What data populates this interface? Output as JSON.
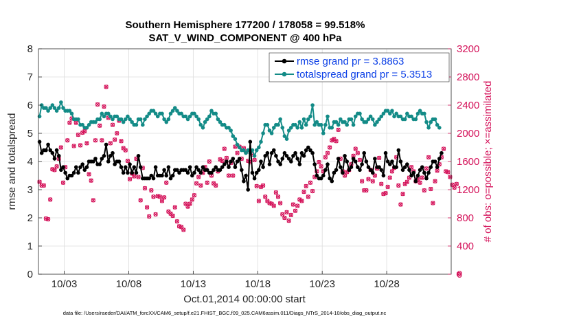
{
  "chart_data": {
    "type": "line",
    "title": "Southern Hemisphere 177200 / 178058 = 99.518%",
    "subtitle": "SAT_V_WIND_COMPONENT @ 400 hPa",
    "xlabel": "Oct.01,2014 00:00:00 start",
    "ylabel": "rmse and totalspread",
    "y2label": "# of obs: o=possible; ×=assimilated",
    "footer": "data file: /Users/raeder/DAI/ATM_forcXX/CAM6_setup/f.e21.FHIST_BGC.f09_025.CAM6assim.011/Diags_NTrS_2014-10/obs_diag_output.nc",
    "xlim": [
      1.0,
      33.0
    ],
    "ylim": [
      0,
      8
    ],
    "y2lim": [
      0,
      3200
    ],
    "x_ticks": [
      {
        "value": 3,
        "label": "10/03"
      },
      {
        "value": 8,
        "label": "10/08"
      },
      {
        "value": 13,
        "label": "10/13"
      },
      {
        "value": 18,
        "label": "10/18"
      },
      {
        "value": 23,
        "label": "10/23"
      },
      {
        "value": 28,
        "label": "10/28"
      }
    ],
    "y_ticks": [
      "0",
      "1",
      "2",
      "3",
      "4",
      "5",
      "6",
      "7",
      "8"
    ],
    "y2_ticks": [
      "0",
      "400",
      "800",
      "1200",
      "1600",
      "2000",
      "2400",
      "2800",
      "3200"
    ],
    "grid": true,
    "legend_position": "top-right",
    "colors": {
      "rmse": "#000000",
      "spread": "#138b87",
      "obs": "#d41159",
      "legend_text": "#0b3fe6"
    },
    "series": [
      {
        "name": "rmse grand pr = 3.8863",
        "axis": "left",
        "values": [
          4.7,
          4.3,
          4.4,
          4.4,
          4.6,
          4.4,
          4.3,
          4.1,
          4.4,
          4.2,
          3.7,
          3.8,
          3.6,
          3.4,
          3.5,
          3.5,
          3.6,
          3.8,
          3.6,
          3.8,
          3.9,
          3.7,
          3.8,
          4.0,
          4.0,
          4.0,
          4.1,
          3.9,
          3.9,
          4.1,
          4.2,
          4.6,
          4.0,
          4.2,
          4.3,
          3.9,
          4.0,
          4.0,
          3.8,
          3.6,
          3.8,
          3.6,
          3.9,
          3.6,
          3.8,
          3.6,
          4.2,
          3.8,
          3.4,
          3.4,
          3.4,
          3.4,
          3.5,
          3.4,
          3.8,
          3.5,
          3.5,
          3.5,
          3.7,
          3.5,
          3.8,
          3.4,
          3.5,
          3.7,
          3.7,
          3.6,
          3.7,
          3.7,
          3.7,
          3.6,
          3.8,
          3.5,
          3.6,
          3.8,
          3.7,
          3.6,
          3.8,
          3.7,
          3.7,
          3.6,
          3.6,
          3.7,
          3.8,
          3.7,
          3.7,
          3.8,
          3.9,
          4.0,
          3.8,
          4.0,
          4.1,
          3.8,
          4.0,
          4.1,
          3.7,
          3.3,
          3.5,
          3.0,
          4.7,
          3.6,
          3.4,
          3.6,
          3.7,
          4.0,
          3.8,
          4.2,
          4.3,
          3.9,
          4.3,
          4.4,
          4.2,
          4.0,
          3.9,
          4.1,
          4.3,
          4.2,
          4.1,
          4.0,
          4.2,
          4.3,
          4.1,
          3.9,
          4.3,
          4.2,
          4.4,
          4.5,
          4.4,
          4.3,
          3.9,
          3.5,
          3.4,
          3.4,
          3.5,
          3.7,
          3.9,
          3.4,
          3.3,
          3.6,
          3.7,
          4.1,
          3.8,
          3.6,
          4.2,
          4.0,
          3.7,
          3.8,
          4.1,
          4.0,
          3.8,
          3.7,
          3.9,
          4.3,
          4.0,
          3.8,
          3.7,
          3.6,
          4.1,
          3.8,
          3.8,
          3.7,
          3.5,
          4.3,
          4.0,
          3.9,
          4.0,
          3.8,
          3.8,
          4.4,
          4.0,
          3.7,
          3.8,
          3.9,
          3.7,
          3.5,
          3.6,
          3.3,
          3.5,
          3.7,
          3.8,
          3.6,
          3.4,
          3.6,
          3.8,
          4.0,
          4.0,
          3.8,
          4.1,
          4.3
        ]
      },
      {
        "name": "totalspread grand pr = 5.3513",
        "axis": "left",
        "values": [
          5.6,
          6.0,
          5.9,
          5.9,
          5.8,
          5.9,
          6.0,
          5.9,
          5.8,
          5.9,
          6.1,
          5.9,
          5.8,
          5.8,
          5.8,
          5.7,
          5.5,
          5.5,
          5.5,
          5.3,
          5.3,
          5.2,
          5.2,
          5.3,
          5.4,
          5.4,
          5.4,
          5.5,
          5.5,
          5.7,
          5.6,
          5.7,
          5.7,
          5.6,
          5.5,
          5.6,
          5.6,
          5.5,
          5.5,
          5.4,
          5.5,
          5.6,
          5.5,
          5.4,
          5.3,
          5.3,
          5.5,
          5.5,
          5.3,
          5.5,
          5.6,
          5.7,
          5.8,
          5.8,
          5.7,
          5.6,
          5.7,
          5.7,
          5.5,
          5.4,
          5.5,
          5.7,
          5.8,
          5.9,
          5.8,
          5.7,
          5.7,
          5.6,
          5.6,
          5.5,
          5.6,
          5.7,
          5.7,
          5.6,
          5.5,
          5.3,
          5.2,
          5.4,
          5.5,
          5.6,
          5.8,
          5.7,
          5.7,
          5.5,
          5.4,
          5.3,
          5.3,
          5.2,
          5.2,
          5.1,
          4.9,
          4.8,
          4.6,
          4.5,
          4.4,
          4.4,
          4.3,
          4.4,
          4.3,
          4.4,
          4.2,
          4.4,
          4.5,
          4.7,
          5.0,
          5.3,
          5.3,
          5.1,
          5.0,
          5.2,
          5.3,
          5.3,
          5.5,
          5.2,
          4.9,
          4.8,
          5.1,
          5.2,
          5.3,
          5.3,
          5.2,
          5.4,
          5.2,
          5.5,
          5.3,
          5.5,
          5.6,
          6.0,
          5.3,
          5.4,
          5.3,
          5.3,
          5.0,
          5.3,
          5.6,
          5.2,
          5.2,
          5.4,
          5.4,
          5.3,
          5.5,
          5.4,
          5.4,
          5.3,
          5.5,
          5.5,
          5.3,
          5.6,
          5.7,
          5.7,
          5.5,
          5.4,
          5.4,
          5.5,
          5.6,
          5.5,
          5.3,
          5.4,
          5.5,
          5.6,
          5.7,
          5.8,
          5.8,
          5.7,
          5.8,
          5.6,
          5.7,
          5.6,
          5.6,
          5.5,
          5.5,
          5.7,
          5.6,
          5.6,
          5.5,
          5.5,
          5.7,
          5.8,
          5.7,
          5.7,
          5.4,
          5.2,
          5.4,
          5.5,
          5.5,
          5.3,
          5.2
        ]
      },
      {
        "name": "obs possible",
        "axis": "right",
        "values": [
          1310,
          1260,
          1260,
          790,
          780,
          1060,
          1490,
          1480,
          1530,
          1640,
          1800,
          1300,
          1520,
          1900,
          2150,
          2210,
          1820,
          2150,
          1980,
          1830,
          2010,
          2030,
          1860,
          1420,
          1330,
          1050,
          1900,
          2410,
          2110,
          1900,
          2380,
          2660,
          2220,
          1860,
          2120,
          1910,
          2000,
          2180,
          1890,
          1790,
          1760,
          1610,
          1350,
          1430,
          1390,
          1640,
          1380,
          1050,
          1510,
          1220,
          950,
          820,
          1190,
          1100,
          850,
          1110,
          1100,
          1040,
          1090,
          1300,
          890,
          860,
          830,
          950,
          750,
          680,
          670,
          630,
          1000,
          960,
          1000,
          1060,
          1120,
          1290,
          1380,
          1260,
          1440,
          1520,
          1300,
          1600,
          1400,
          1290,
          1260,
          1460,
          1630,
          1610,
          1780,
          1650,
          1400,
          1580,
          1400,
          1810,
          1720,
          1810,
          1640,
          1790,
          1740,
          1610,
          1590,
          1700,
          1620,
          1250,
          1040,
          1240,
          1260,
          1100,
          1040,
          1010,
          1000,
          970,
          1160,
          1100,
          1010,
          850,
          800,
          880,
          760,
          840,
          990,
          900,
          970,
          1060,
          1040,
          1170,
          1250,
          1100,
          1300,
          1180,
          1380,
          1460,
          1590,
          1530,
          1460,
          1660,
          1720,
          1800,
          1900,
          1920,
          1890,
          2050,
          1640,
          1460,
          1400,
          1450,
          1480,
          1560,
          1680,
          1780,
          1720,
          1620,
          1320,
          1190,
          1190,
          1350,
          1480,
          1320,
          1400,
          1500,
          1650,
          1280,
          1140,
          1150,
          1240,
          1370,
          1460,
          1510,
          1660,
          1260,
          990,
          1140,
          1280,
          1310,
          1370,
          1520,
          1460,
          1320,
          1350,
          1300,
          1370,
          1190,
          1500,
          1660,
          1210,
          1010,
          1320,
          1470,
          1560,
          1660,
          1780,
          1460,
          1450,
          1380,
          1270,
          1230,
          1280,
          0
        ]
      },
      {
        "name": "obs assimilated",
        "axis": "right",
        "values": [
          1310,
          1260,
          1260,
          790,
          780,
          1060,
          1490,
          1480,
          1530,
          1640,
          1800,
          1300,
          1520,
          1900,
          2150,
          2210,
          1820,
          2150,
          1980,
          1830,
          2010,
          2030,
          1860,
          1420,
          1330,
          1050,
          1900,
          2410,
          2110,
          1900,
          2380,
          2660,
          2220,
          1860,
          2120,
          1910,
          2000,
          2180,
          1890,
          1790,
          1760,
          1610,
          1350,
          1430,
          1390,
          1640,
          1380,
          1050,
          1510,
          1220,
          950,
          820,
          1190,
          1100,
          850,
          1110,
          1100,
          1040,
          1090,
          1300,
          890,
          860,
          830,
          950,
          750,
          680,
          670,
          630,
          1000,
          960,
          1000,
          1060,
          1120,
          1290,
          1380,
          1260,
          1440,
          1520,
          1300,
          1600,
          1400,
          1290,
          1260,
          1460,
          1630,
          1610,
          1780,
          1650,
          1400,
          1580,
          1400,
          1810,
          1720,
          1810,
          1640,
          1790,
          1740,
          1610,
          1590,
          1700,
          1620,
          1250,
          1040,
          1240,
          1260,
          1100,
          1040,
          1010,
          1000,
          970,
          1160,
          1100,
          1010,
          850,
          800,
          880,
          760,
          840,
          990,
          900,
          970,
          1060,
          1040,
          1170,
          1250,
          1100,
          1300,
          1180,
          1380,
          1460,
          1590,
          1530,
          1460,
          1660,
          1720,
          1800,
          1900,
          1920,
          1890,
          2050,
          1640,
          1460,
          1400,
          1450,
          1480,
          1560,
          1680,
          1780,
          1720,
          1620,
          1320,
          1190,
          1190,
          1350,
          1480,
          1320,
          1400,
          1500,
          1650,
          1280,
          1140,
          1150,
          1240,
          1370,
          1460,
          1510,
          1660,
          1260,
          990,
          1140,
          1280,
          1310,
          1370,
          1520,
          1460,
          1320,
          1350,
          1300,
          1370,
          1190,
          1500,
          1660,
          1210,
          1010,
          1320,
          1470,
          1560,
          1660,
          1780,
          1460,
          1450,
          1380,
          1270,
          1230,
          1280,
          0
        ]
      }
    ],
    "x_step": 0.1666667,
    "x_start": 1.0833
  }
}
